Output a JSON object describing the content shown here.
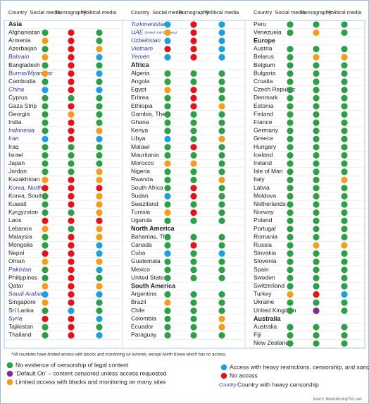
{
  "header": [
    "Country",
    "Social media",
    "Pornography",
    "Political media"
  ],
  "columns": [
    {
      "rows": [
        {
          "region": "Asia"
        },
        {
          "country": "Afghanistan",
          "dots": [
            "#2e9e48",
            "#e3131b",
            "#2e9e48"
          ]
        },
        {
          "country": "Armenia",
          "dots": [
            "#f39c1e",
            "#e3131b",
            "#2e9e48"
          ]
        },
        {
          "country": "Azerbaijan",
          "dots": [
            "#2e9e48",
            "#e3131b",
            "#f39c1e"
          ]
        },
        {
          "country": "Bahrain",
          "heavy": true,
          "dots": [
            "#f39c1e",
            "#e3131b",
            "#1da1dc"
          ]
        },
        {
          "country": "Bangladesh",
          "dots": [
            "#2e9e48",
            "#e3131b",
            "#2e9e48"
          ]
        },
        {
          "country": "Burma/Myanmar",
          "heavy": true,
          "dots": [
            "#f39c1e",
            "#e3131b",
            "#1da1dc"
          ]
        },
        {
          "country": "Cambodia",
          "dots": [
            "#2e9e48",
            "#e3131b",
            "#2e9e48"
          ]
        },
        {
          "country": "China",
          "heavy": true,
          "dots": [
            "#1da1dc",
            "#e3131b",
            "#1da1dc"
          ]
        },
        {
          "country": "Cyprus",
          "dots": [
            "#2e9e48",
            "#2e9e48",
            "#2e9e48"
          ]
        },
        {
          "country": "Gaza Strip",
          "dots": [
            "#2e9e48",
            "#e3131b",
            "#2e9e48"
          ]
        },
        {
          "country": "Georgia",
          "dots": [
            "#2e9e48",
            "#f39c1e",
            "#2e9e48"
          ]
        },
        {
          "country": "India",
          "dots": [
            "#2e9e48",
            "#e3131b",
            "#2e9e48"
          ]
        },
        {
          "country": "Indonesia",
          "heavy": true,
          "dots": [
            "#2e9e48",
            "#e3131b",
            "#f39c1e"
          ]
        },
        {
          "country": "Iran",
          "heavy": true,
          "dots": [
            "#1da1dc",
            "#e3131b",
            "#1da1dc"
          ]
        },
        {
          "country": "Iraq",
          "dots": [
            "#2e9e48",
            "#2e9e48",
            "#2e9e48"
          ]
        },
        {
          "country": "Israel",
          "dots": [
            "#2e9e48",
            "#2e9e48",
            "#2e9e48"
          ]
        },
        {
          "country": "Japan",
          "dots": [
            "#2e9e48",
            "#2e9e48",
            "#2e9e48"
          ]
        },
        {
          "country": "Jordan",
          "dots": [
            "#2e9e48",
            "#2e9e48",
            "#f39c1e"
          ]
        },
        {
          "country": "Kazakhstan",
          "dots": [
            "#f39c1e",
            "#e3131b",
            "#f39c1e"
          ]
        },
        {
          "country": "Korea, North",
          "heavy": true,
          "dots": [
            "#e3131b",
            "#e3131b",
            "#e3131b"
          ]
        },
        {
          "country": "Korea, South",
          "dots": [
            "#2e9e48",
            "#e3131b",
            "#f39c1e"
          ]
        },
        {
          "country": "Kuwait",
          "dots": [
            "#2e9e48",
            "#e3131b",
            "#f39c1e"
          ]
        },
        {
          "country": "Kyrgyzstan",
          "dots": [
            "#2e9e48",
            "#2e9e48",
            "#f39c1e"
          ]
        },
        {
          "country": "Laos",
          "dots": [
            "#e3131b",
            "#e3131b",
            "#e3131b"
          ]
        },
        {
          "country": "Lebanon",
          "dots": [
            "#f39c1e",
            "#2e9e48",
            "#f39c1e"
          ]
        },
        {
          "country": "Malaysia",
          "dots": [
            "#2e9e48",
            "#e3131b",
            "#f39c1e"
          ]
        },
        {
          "country": "Mongolia",
          "dots": [
            "#2e9e48",
            "#e3131b",
            "#1da1dc"
          ]
        },
        {
          "country": "Nepal",
          "dots": [
            "#e3131b",
            "#e3131b",
            "#1da1dc"
          ]
        },
        {
          "country": "Oman",
          "dots": [
            "#f39c1e",
            "#e3131b",
            "#f39c1e"
          ]
        },
        {
          "country": "Pakistan",
          "heavy": true,
          "dots": [
            "#2e9e48",
            "#e3131b",
            "#1da1dc"
          ]
        },
        {
          "country": "Philippines",
          "dots": [
            "#2e9e48",
            "#e3131b",
            "#2e9e48"
          ]
        },
        {
          "country": "Qatar",
          "dots": [
            "#f39c1e",
            "#e3131b",
            "#f39c1e"
          ]
        },
        {
          "country": "Saudi Arabia",
          "heavy": true,
          "dots": [
            "#1da1dc",
            "#e3131b",
            "#1da1dc"
          ]
        },
        {
          "country": "Singapore",
          "dots": [
            "#f39c1e",
            "#e3131b",
            "#2e9e48"
          ]
        },
        {
          "country": "Sri Lanka",
          "dots": [
            "#2e9e48",
            "#1da1dc",
            "#2e9e48"
          ]
        },
        {
          "country": "Syria",
          "heavy": true,
          "dots": [
            "#e3131b",
            "#e3131b",
            "#1da1dc"
          ]
        },
        {
          "country": "Tajikistan",
          "dots": [
            "#2e9e48",
            "#e3131b",
            "#2e9e48"
          ]
        },
        {
          "country": "Thailand",
          "dots": [
            "#2e9e48",
            "#e3131b",
            "#1da1dc"
          ]
        }
      ]
    },
    {
      "rows": [
        {
          "country": "Turkmenistan",
          "heavy": true,
          "dots": [
            "#1da1dc",
            "#e3131b",
            "#1da1dc"
          ]
        },
        {
          "country": "UAE",
          "note": "(United Arab Emirates)",
          "heavy": true,
          "dots": [
            "#f39c1e",
            "#e3131b",
            "#1da1dc"
          ]
        },
        {
          "country": "Uzbekistan",
          "heavy": true,
          "dots": [
            "#1da1dc",
            "#e3131b",
            "#1da1dc"
          ]
        },
        {
          "country": "Vietnam",
          "heavy": true,
          "dots": [
            "#e3131b",
            "#e3131b",
            "#1da1dc"
          ]
        },
        {
          "country": "Yemen",
          "heavy": true,
          "dots": [
            "#1da1dc",
            "#e3131b",
            "#1da1dc"
          ]
        },
        {
          "region": "Africa"
        },
        {
          "country": "Algeria",
          "dots": [
            "#2e9e48",
            "#2e9e48",
            "#2e9e48"
          ]
        },
        {
          "country": "Angola",
          "dots": [
            "#2e9e48",
            "#2e9e48",
            "#2e9e48"
          ]
        },
        {
          "country": "Egypt",
          "dots": [
            "#f39c1e",
            "#e3131b",
            "#2e9e48"
          ]
        },
        {
          "country": "Eritrea",
          "dots": [
            "#2e9e48",
            "#e3131b",
            "#2e9e48"
          ]
        },
        {
          "country": "Ethiopia",
          "dots": [
            "#2e9e48",
            "#e3131b",
            "#f39c1e"
          ]
        },
        {
          "country": "Gambia, The",
          "dots": [
            "#2e9e48",
            "#2e9e48",
            "#2e9e48"
          ]
        },
        {
          "country": "Ghana",
          "dots": [
            "#2e9e48",
            "#2e9e48",
            "#2e9e48"
          ]
        },
        {
          "country": "Kenya",
          "dots": [
            "#2e9e48",
            "#2e9e48",
            "#2e9e48"
          ]
        },
        {
          "country": "Libya",
          "dots": [
            "#1da1dc",
            "#2e9e48",
            "#f39c1e"
          ]
        },
        {
          "country": "Malawi",
          "dots": [
            "#2e9e48",
            "#e3131b",
            "#2e9e48"
          ]
        },
        {
          "country": "Mauritania",
          "dots": [
            "#2e9e48",
            "#2e9e48",
            "#2e9e48"
          ]
        },
        {
          "country": "Morocco",
          "dots": [
            "#f39c1e",
            "#f39c1e",
            "#2e9e48"
          ]
        },
        {
          "country": "Nigeria",
          "dots": [
            "#2e9e48",
            "#2e9e48",
            "#2e9e48"
          ]
        },
        {
          "country": "Rwanda",
          "dots": [
            "#2e9e48",
            "#2e9e48",
            "#f39c1e"
          ]
        },
        {
          "country": "South Africa",
          "dots": [
            "#2e9e48",
            "#e3131b",
            "#2e9e48"
          ]
        },
        {
          "country": "Sudan",
          "dots": [
            "#1da1dc",
            "#e3131b",
            "#2e9e48"
          ]
        },
        {
          "country": "Swaziland",
          "dots": [
            "#2e9e48",
            "#2e9e48",
            "#2e9e48"
          ]
        },
        {
          "country": "Tunisia",
          "dots": [
            "#f39c1e",
            "#e3131b",
            "#2e9e48"
          ]
        },
        {
          "country": "Uganda",
          "dots": [
            "#2e9e48",
            "#2e9e48",
            "#2e9e48"
          ]
        },
        {
          "region": "North America"
        },
        {
          "country": "Bahamas, The",
          "dots": [
            "#2e9e48",
            "#2e9e48",
            "#2e9e48"
          ]
        },
        {
          "country": "Canada",
          "dots": [
            "#2e9e48",
            "#e3131b",
            "#2e9e48"
          ]
        },
        {
          "country": "Cuba",
          "dots": [
            "#1da1dc",
            "#2e9e48",
            "#1da1dc"
          ]
        },
        {
          "country": "Guatemala",
          "dots": [
            "#2e9e48",
            "#2e9e48",
            "#2e9e48"
          ]
        },
        {
          "country": "Mexico",
          "dots": [
            "#2e9e48",
            "#2e9e48",
            "#2e9e48"
          ]
        },
        {
          "country": "United States",
          "dots": [
            "#2e9e48",
            "#2e9e48",
            "#2e9e48"
          ]
        },
        {
          "region": "South America"
        },
        {
          "country": "Argentina",
          "dots": [
            "#2e9e48",
            "#2e9e48",
            "#2e9e48"
          ]
        },
        {
          "country": "Brazil",
          "dots": [
            "#f39c1e",
            "#2e9e48",
            "#2e9e48"
          ]
        },
        {
          "country": "Chile",
          "dots": [
            "#2e9e48",
            "#2e9e48",
            "#2e9e48"
          ]
        },
        {
          "country": "Colombia",
          "dots": [
            "#2e9e48",
            "#2e9e48",
            "#f39c1e"
          ]
        },
        {
          "country": "Ecuador",
          "dots": [
            "#2e9e48",
            "#2e9e48",
            "#f39c1e"
          ]
        },
        {
          "country": "Paraguay",
          "dots": [
            "#2e9e48",
            "#2e9e48",
            "#2e9e48"
          ]
        }
      ]
    },
    {
      "rows": [
        {
          "country": "Peru",
          "dots": [
            "#2e9e48",
            "#2e9e48",
            "#2e9e48"
          ]
        },
        {
          "country": "Venezuela",
          "dots": [
            "#2e9e48",
            "#f39c1e",
            "#2e9e48"
          ]
        },
        {
          "region": "Europe"
        },
        {
          "country": "Austria",
          "dots": [
            "#2e9e48",
            "#2e9e48",
            "#2e9e48"
          ]
        },
        {
          "country": "Belarus",
          "dots": [
            "#2e9e48",
            "#f39c1e",
            "#f39c1e"
          ]
        },
        {
          "country": "Belgium",
          "dots": [
            "#2e9e48",
            "#2e9e48",
            "#2e9e48"
          ]
        },
        {
          "country": "Bulgaria",
          "dots": [
            "#2e9e48",
            "#2e9e48",
            "#2e9e48"
          ]
        },
        {
          "country": "Croatia",
          "dots": [
            "#2e9e48",
            "#2e9e48",
            "#2e9e48"
          ]
        },
        {
          "country": "Czech Republic",
          "dots": [
            "#2e9e48",
            "#2e9e48",
            "#2e9e48"
          ]
        },
        {
          "country": "Denmark",
          "dots": [
            "#2e9e48",
            "#2e9e48",
            "#2e9e48"
          ]
        },
        {
          "country": "Estonia",
          "dots": [
            "#2e9e48",
            "#2e9e48",
            "#2e9e48"
          ]
        },
        {
          "country": "Finland",
          "dots": [
            "#2e9e48",
            "#2e9e48",
            "#2e9e48"
          ]
        },
        {
          "country": "France",
          "dots": [
            "#2e9e48",
            "#2e9e48",
            "#2e9e48"
          ]
        },
        {
          "country": "Germany",
          "dots": [
            "#2e9e48",
            "#2e9e48",
            "#2e9e48"
          ]
        },
        {
          "country": "Greece",
          "dots": [
            "#2e9e48",
            "#2e9e48",
            "#2e9e48"
          ]
        },
        {
          "country": "Hungary",
          "dots": [
            "#2e9e48",
            "#2e9e48",
            "#2e9e48"
          ]
        },
        {
          "country": "Iceland",
          "dots": [
            "#2e9e48",
            "#2e9e48",
            "#2e9e48"
          ]
        },
        {
          "country": "Ireland",
          "dots": [
            "#2e9e48",
            "#2e9e48",
            "#2e9e48"
          ]
        },
        {
          "country": "Isle of Man",
          "dots": [
            "#2e9e48",
            "#2e9e48",
            "#2e9e48"
          ]
        },
        {
          "country": "Italy",
          "dots": [
            "#2e9e48",
            "#2e9e48",
            "#f39c1e"
          ]
        },
        {
          "country": "Latvia",
          "dots": [
            "#2e9e48",
            "#2e9e48",
            "#2e9e48"
          ]
        },
        {
          "country": "Moldova",
          "dots": [
            "#2e9e48",
            "#2e9e48",
            "#2e9e48"
          ]
        },
        {
          "country": "Netherlands",
          "dots": [
            "#2e9e48",
            "#2e9e48",
            "#2e9e48"
          ]
        },
        {
          "country": "Norway",
          "dots": [
            "#2e9e48",
            "#2e9e48",
            "#2e9e48"
          ]
        },
        {
          "country": "Poland",
          "dots": [
            "#2e9e48",
            "#2e9e48",
            "#2e9e48"
          ]
        },
        {
          "country": "Portugal",
          "dots": [
            "#2e9e48",
            "#2e9e48",
            "#2e9e48"
          ]
        },
        {
          "country": "Romania",
          "dots": [
            "#2e9e48",
            "#2e9e48",
            "#2e9e48"
          ]
        },
        {
          "country": "Russia",
          "dots": [
            "#2e9e48",
            "#f39c1e",
            "#f39c1e"
          ]
        },
        {
          "country": "Slovakia",
          "dots": [
            "#2e9e48",
            "#2e9e48",
            "#2e9e48"
          ]
        },
        {
          "country": "Slovenia",
          "dots": [
            "#2e9e48",
            "#2e9e48",
            "#2e9e48"
          ]
        },
        {
          "country": "Spain",
          "dots": [
            "#2e9e48",
            "#2e9e48",
            "#2e9e48"
          ]
        },
        {
          "country": "Sweden",
          "dots": [
            "#2e9e48",
            "#2e9e48",
            "#2e9e48"
          ]
        },
        {
          "country": "Switzerland",
          "dots": [
            "#2e9e48",
            "#2e9e48",
            "#2e9e48"
          ]
        },
        {
          "country": "Turkey",
          "dots": [
            "#f39c1e",
            "#e3131b",
            "#1da1dc"
          ]
        },
        {
          "country": "Ukraine",
          "dots": [
            "#2e9e48",
            "#2e9e48",
            "#2e9e48"
          ]
        },
        {
          "country": "United Kingdom",
          "dots": [
            "#2e9e48",
            "#7b2d8e",
            "#2e9e48"
          ]
        },
        {
          "region": "Australia"
        },
        {
          "country": "Australia",
          "dots": [
            "#2e9e48",
            "#2e9e48",
            "#2e9e48"
          ]
        },
        {
          "country": "Fiji",
          "dots": [
            "#2e9e48",
            "#2e9e48",
            "#2e9e48"
          ]
        },
        {
          "country": "New Zealand",
          "dots": [
            "#2e9e48",
            "#2e9e48",
            "#2e9e48"
          ]
        }
      ]
    }
  ],
  "footnote": "*All countries have limited access with blocks and monitoring on torrents, except North Korea which has no access.",
  "legend": [
    {
      "color": "#2e9e48",
      "label": "No evidence of censorship of legal content"
    },
    {
      "color": "#7b2d8e",
      "label": "'Default On' – content censored unless access requested"
    },
    {
      "color": "#f39c1e",
      "label": "Limited access with blocks and monitoring on many sites"
    },
    {
      "color": "#1da1dc",
      "label": "Access with heavy restrictions, censorship, and sanctions"
    },
    {
      "color": "#e3131b",
      "label": "No access"
    }
  ],
  "heavy_legend": {
    "sample": "Country",
    "label": "Country with heavy censorship"
  },
  "source": "Source: WhoIsHostingThis.com"
}
